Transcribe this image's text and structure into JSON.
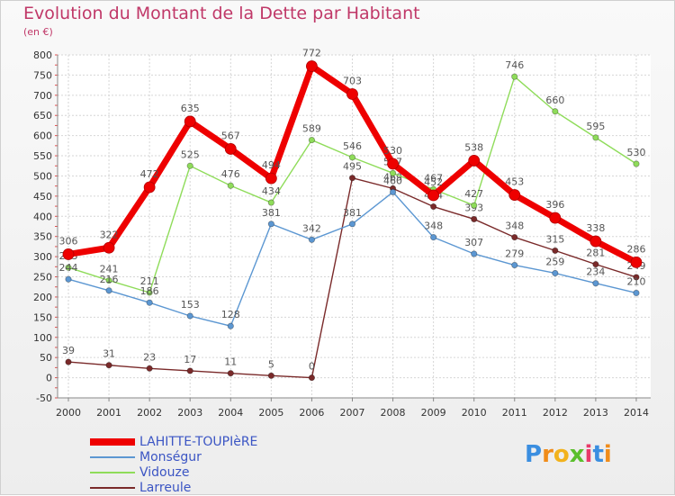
{
  "title": "Evolution du Montant de la Dette par Habitant",
  "subtitle": "(en €)",
  "logo": {
    "text": "Proxiti",
    "letter_colors": [
      "#3a8ee0",
      "#f08c1a",
      "#f2b21c",
      "#5abf2b",
      "#e93a6a",
      "#3a8ee0",
      "#f08c1a"
    ]
  },
  "chart_data": {
    "type": "line",
    "title": "Evolution du Montant de la Dette par Habitant",
    "subtitle": "(en €)",
    "x": [
      "2000",
      "2001",
      "2002",
      "2003",
      "2004",
      "2005",
      "2006",
      "2007",
      "2008",
      "2009",
      "2010",
      "2011",
      "2012",
      "2013",
      "2014"
    ],
    "ylim": [
      -50,
      800
    ],
    "yticks": [
      -50,
      0,
      50,
      100,
      150,
      200,
      250,
      300,
      350,
      400,
      450,
      500,
      550,
      600,
      650,
      700,
      750,
      800
    ],
    "grid": true,
    "legend_position": "bottom-left",
    "series": [
      {
        "name": "LAHITTE-TOUPIèRE",
        "color": "#ee0000",
        "values": [
          306,
          322,
          472,
          635,
          567,
          494,
          772,
          703,
          530,
          452,
          538,
          453,
          396,
          338,
          286
        ],
        "labels": [
          "306",
          "322",
          "472",
          "635",
          "567",
          "494",
          "772",
          "703",
          "530",
          "452",
          "538",
          "453",
          "396",
          "338",
          "286"
        ]
      },
      {
        "name": "Monségur",
        "color": "#5c97d2",
        "values": [
          244,
          216,
          186,
          153,
          128,
          381,
          342,
          381,
          460,
          348,
          307,
          279,
          259,
          234,
          210
        ],
        "labels": [
          "244",
          "216",
          "186",
          "153",
          "128",
          "381",
          "342",
          "381",
          "460",
          "348",
          "307",
          "279",
          "259",
          "234",
          "210"
        ]
      },
      {
        "name": "Vidouze",
        "color": "#8fdc5a",
        "values": [
          273,
          241,
          211,
          525,
          476,
          434,
          589,
          546,
          507,
          467,
          427,
          746,
          660,
          595,
          530
        ],
        "labels": [
          "273",
          "241",
          "211",
          "525",
          "476",
          "434",
          "589",
          "546",
          "507",
          "467",
          "427",
          "746",
          "660",
          "595",
          "530"
        ]
      },
      {
        "name": "Larreule",
        "color": "#7a2a2a",
        "values": [
          39,
          31,
          23,
          17,
          11,
          5,
          0,
          495,
          469,
          424,
          393,
          348,
          315,
          281,
          249
        ],
        "labels": [
          "39",
          "31",
          "23",
          "17",
          "11",
          "5",
          "0",
          "495",
          "469",
          "424",
          "393",
          "348",
          "315",
          "281",
          "249"
        ]
      }
    ]
  }
}
